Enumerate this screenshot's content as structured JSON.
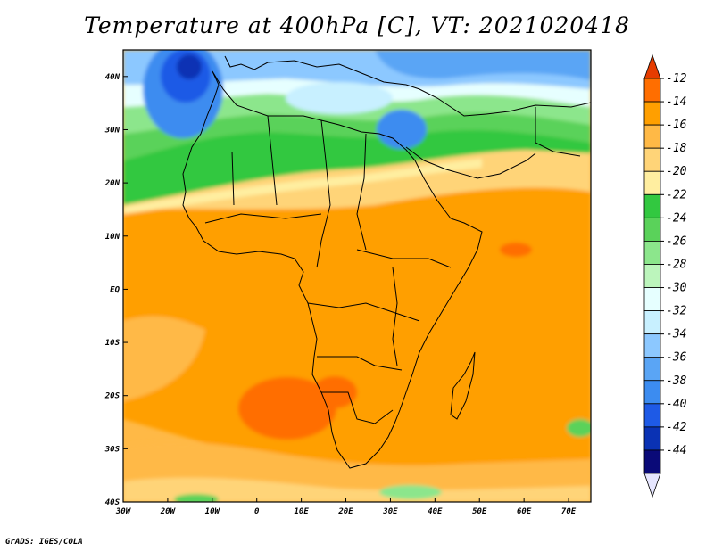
{
  "title": "Temperature at 400hPa [C], VT: 2021020418",
  "credit": "GrADS: IGES/COLA",
  "map": {
    "lon_labels": [
      "30W",
      "20W",
      "10W",
      "0",
      "10E",
      "20E",
      "30E",
      "40E",
      "50E",
      "60E",
      "70E"
    ],
    "lat_labels": [
      "40N",
      "30N",
      "20N",
      "10N",
      "EQ",
      "10S",
      "20S",
      "30S",
      "40S"
    ],
    "lon_range": [
      -30,
      75
    ],
    "lat_range": [
      -40,
      45
    ],
    "field": "temperature at 400hPa",
    "units": "C",
    "valid_time": "2021020418"
  },
  "colorbar": {
    "labels": [
      "-12",
      "-14",
      "-16",
      "-18",
      "-20",
      "-22",
      "-24",
      "-26",
      "-28",
      "-30",
      "-32",
      "-34",
      "-36",
      "-38",
      "-40",
      "-42",
      "-44"
    ],
    "colors": [
      "#e63c00",
      "#ff6e00",
      "#ff9f00",
      "#ffb946",
      "#ffd478",
      "#ffeea0",
      "#32c840",
      "#5ad25a",
      "#8ce68c",
      "#bcf5bc",
      "#e6ffff",
      "#c8f0ff",
      "#8cc8ff",
      "#5aa5f5",
      "#3c8cf0",
      "#1e5ae6",
      "#0a32b4",
      "#0a0a78",
      "#e6e6ff"
    ]
  }
}
